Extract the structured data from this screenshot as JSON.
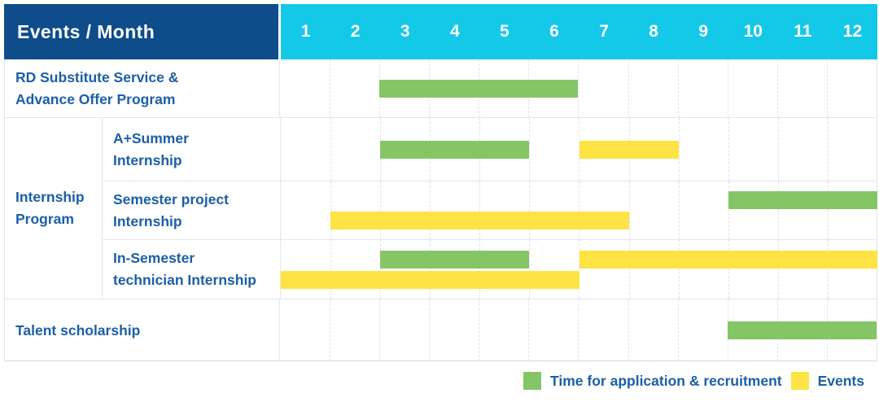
{
  "header": {
    "title": "Events / Month",
    "months": [
      "1",
      "2",
      "3",
      "4",
      "5",
      "6",
      "7",
      "8",
      "9",
      "10",
      "11",
      "12"
    ]
  },
  "group": {
    "label_lines": [
      "Internship",
      "Program"
    ]
  },
  "rows": [
    {
      "label_lines": [
        "RD Substitute Service &",
        "Advance Offer Program"
      ],
      "lines": [
        [
          {
            "c": "green",
            "s": 3,
            "e": 6
          }
        ]
      ]
    },
    {
      "label_lines": [
        "A+Summer",
        "Internship"
      ],
      "lines": [
        [
          {
            "c": "green",
            "s": 3,
            "e": 5
          },
          {
            "c": "yellow",
            "s": 7,
            "e": 8
          }
        ]
      ]
    },
    {
      "label_lines": [
        "Semester project",
        "Internship"
      ],
      "lines": [
        [
          {
            "c": "green",
            "s": 10,
            "e": 12
          }
        ],
        [
          {
            "c": "yellow",
            "s": 2,
            "e": 7
          }
        ]
      ]
    },
    {
      "label_lines": [
        "In-Semester",
        "technician Internship"
      ],
      "lines": [
        [
          {
            "c": "green",
            "s": 3,
            "e": 5
          },
          {
            "c": "yellow",
            "s": 7,
            "e": 12
          }
        ],
        [
          {
            "c": "yellow",
            "s": 1,
            "e": 6
          }
        ]
      ]
    },
    {
      "label_lines": [
        "Talent scholarship"
      ],
      "lines": [
        [
          {
            "c": "green",
            "s": 10,
            "e": 12
          }
        ]
      ]
    }
  ],
  "legend": [
    {
      "color": "green",
      "label": "Time for application & recruitment"
    },
    {
      "color": "yellow",
      "label": "Events"
    }
  ],
  "colors": {
    "header_navy": "#0e4c8a",
    "header_cyan": "#14c8e8",
    "bar_green": "#85c565",
    "bar_yellow": "#fde343",
    "label_blue": "#1c5fa6"
  },
  "chart_data": {
    "type": "table",
    "title": "Events / Month",
    "x_categories": [
      1,
      2,
      3,
      4,
      5,
      6,
      7,
      8,
      9,
      10,
      11,
      12
    ],
    "legend": [
      "Time for application & recruitment",
      "Events"
    ],
    "legend_position": "bottom-right",
    "rows": [
      {
        "event": "RD Substitute Service & Advance Offer Program",
        "group": null,
        "application_recruitment_month_ranges": [
          [
            3,
            6
          ]
        ],
        "events_month_ranges": []
      },
      {
        "event": "A+Summer Internship",
        "group": "Internship Program",
        "application_recruitment_month_ranges": [
          [
            3,
            5
          ]
        ],
        "events_month_ranges": [
          [
            7,
            8
          ]
        ]
      },
      {
        "event": "Semester project Internship",
        "group": "Internship Program",
        "application_recruitment_month_ranges": [
          [
            10,
            12
          ]
        ],
        "events_month_ranges": [
          [
            2,
            7
          ]
        ]
      },
      {
        "event": "In-Semester technician Internship",
        "group": "Internship Program",
        "application_recruitment_month_ranges": [
          [
            3,
            5
          ]
        ],
        "events_month_ranges": [
          [
            7,
            12
          ],
          [
            1,
            6
          ]
        ]
      },
      {
        "event": "Talent scholarship",
        "group": null,
        "application_recruitment_month_ranges": [
          [
            10,
            12
          ]
        ],
        "events_month_ranges": []
      }
    ]
  }
}
